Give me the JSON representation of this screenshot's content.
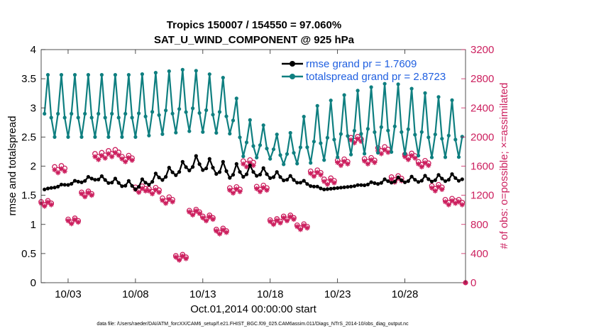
{
  "chart_data": {
    "type": "line",
    "title": "Tropics 150007 / 154550 = 97.060%",
    "subtitle": "SAT_U_WIND_COMPONENT @ 925 hPa",
    "xlabel": "Oct.01,2014 00:00:00 start",
    "ylabel": "rmse and totalspread",
    "y2label": "# of obs: o=possible; ×=assimilated",
    "footnote": "data file: /Users/raeder/DAI/ATM_forcXX/CAM6_setup/f.e21.FHIST_BGC.f09_025.CAM6assim.011/Diags_NTrS_2014-10/obs_diag_output.nc",
    "xlim": [
      1,
      32.5
    ],
    "ylim": [
      0,
      4
    ],
    "y2lim": [
      0,
      3200
    ],
    "x_ticks": [
      3,
      8,
      13,
      18,
      23,
      28
    ],
    "x_ticklabels": [
      "10/03",
      "10/08",
      "10/13",
      "10/18",
      "10/23",
      "10/28"
    ],
    "y_ticks": [
      0,
      0.5,
      1,
      1.5,
      2,
      2.5,
      3,
      3.5,
      4
    ],
    "y_ticklabels": [
      "0",
      "0.5",
      "1",
      "1.5",
      "2",
      "2.5",
      "3",
      "3.5",
      "4"
    ],
    "y2_ticks": [
      0,
      400,
      800,
      1200,
      1600,
      2000,
      2400,
      2800,
      3200
    ],
    "y2_ticklabels": [
      "0",
      "400",
      "800",
      "1200",
      "1600",
      "2000",
      "2400",
      "2800",
      "3200"
    ],
    "legend_position": "top-right",
    "grid": false,
    "series": [
      {
        "name": "rmse",
        "legend": "rmse grand pr = 1.7609",
        "color": "#000000",
        "marker": "dot",
        "cycle": [
          1.65,
          1.85,
          1.7,
          1.6
        ],
        "segments": [
          [
            1.25,
            1.6,
            0.0
          ],
          [
            5.0,
            1.8,
            0.1
          ],
          [
            8.0,
            1.65,
            0.15
          ],
          [
            12.5,
            2.05,
            0.25
          ],
          [
            15.0,
            1.9,
            0.3
          ],
          [
            17.0,
            1.9,
            0.2
          ],
          [
            20.0,
            1.75,
            0.1
          ],
          [
            22.0,
            1.6,
            0.0
          ],
          [
            24.0,
            1.65,
            0.0
          ],
          [
            27.0,
            1.75,
            0.1
          ],
          [
            32.25,
            1.8,
            0.15
          ]
        ]
      },
      {
        "name": "totalspread",
        "legend": "totalspread grand pr = 2.8723",
        "color": "#0f7f80",
        "marker": "dot",
        "cycle": [
          2.85,
          3.35,
          2.8,
          2.55
        ],
        "segments": [
          [
            1.25,
            2.95,
            0.4
          ],
          [
            8.0,
            2.95,
            0.4
          ],
          [
            12.0,
            3.05,
            0.4
          ],
          [
            15.0,
            2.95,
            0.35
          ],
          [
            16.0,
            2.45,
            0.25
          ],
          [
            18.0,
            2.35,
            0.2
          ],
          [
            19.0,
            2.2,
            0.15
          ],
          [
            21.0,
            2.45,
            0.35
          ],
          [
            24.0,
            2.65,
            0.4
          ],
          [
            27.0,
            2.75,
            0.45
          ],
          [
            30.0,
            2.6,
            0.4
          ],
          [
            32.25,
            2.55,
            0.35
          ]
        ]
      },
      {
        "name": "obs possible",
        "axis": "right",
        "color": "#cc1f5e",
        "marker": "circle",
        "values_by_day": [
          1100,
          1580,
          860,
          1230,
          1760,
          1800,
          1720,
          1300,
          1280,
          1150,
          360,
          980,
          900,
          720,
          1290,
          1660,
          1310,
          850,
          900,
          780,
          1520,
          1410,
          1670,
          1980,
          1690,
          1840,
          1440,
          1750,
          1650,
          1320,
          1130,
          1130
        ]
      },
      {
        "name": "obs assimilated",
        "axis": "right",
        "color": "#cc1f5e",
        "marker": "asterisk",
        "values_by_day": [
          1080,
          1540,
          840,
          1210,
          1720,
          1760,
          1690,
          1270,
          1250,
          1120,
          340,
          960,
          880,
          700,
          1260,
          1620,
          1280,
          830,
          880,
          760,
          1490,
          1380,
          1640,
          1950,
          1660,
          1800,
          1410,
          1720,
          1620,
          1290,
          1100,
          1100
        ]
      }
    ]
  }
}
